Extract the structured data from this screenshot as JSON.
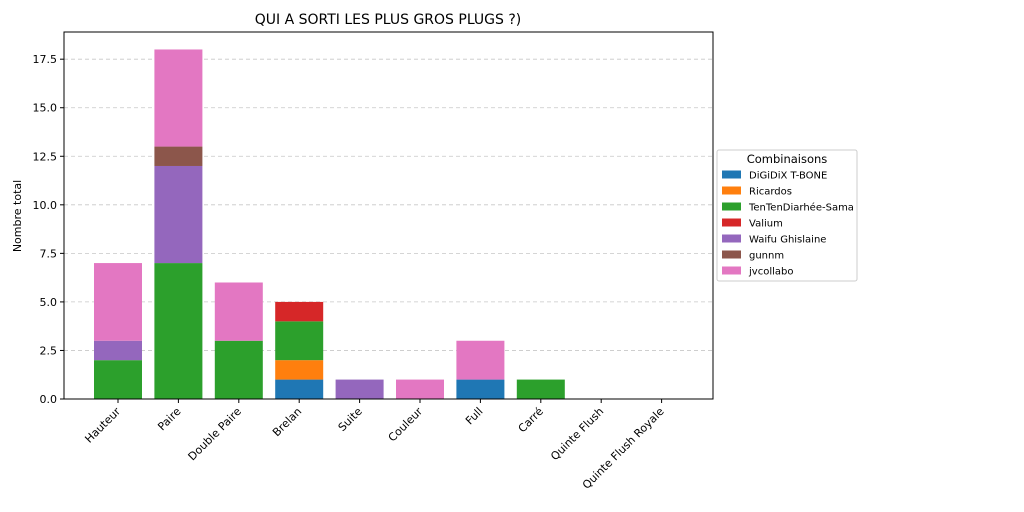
{
  "chart_data": {
    "type": "bar",
    "stacked": true,
    "title": "QUI A SORTI LES PLUS GROS PLUGS ?)",
    "xlabel": "",
    "ylabel": "Nombre total",
    "ylim": [
      0,
      18.9
    ],
    "yticks": [
      "0.0",
      "2.5",
      "5.0",
      "7.5",
      "10.0",
      "12.5",
      "15.0",
      "17.5"
    ],
    "grid": "y-dashed",
    "legend_title": "Combinaisons",
    "legend_position": "outside-right",
    "categories": [
      "Hauteur",
      "Paire",
      "Double Paire",
      "Brelan",
      "Suite",
      "Couleur",
      "Full",
      "Carré",
      "Quinte Flush",
      "Quinte Flush Royale"
    ],
    "series": [
      {
        "name": "DiGiDiX T-BONE",
        "color": "#1f77b4",
        "values": [
          0,
          0,
          0,
          1,
          0,
          0,
          1,
          0,
          0,
          0
        ]
      },
      {
        "name": "Ricardos",
        "color": "#ff7f0e",
        "values": [
          0,
          0,
          0,
          1,
          0,
          0,
          0,
          0,
          0,
          0
        ]
      },
      {
        "name": "TenTenDiarhée-Sama",
        "color": "#2ca02c",
        "values": [
          2,
          7,
          3,
          2,
          0,
          0,
          0,
          1,
          0,
          0
        ]
      },
      {
        "name": "Valium",
        "color": "#d62728",
        "values": [
          0,
          0,
          0,
          1,
          0,
          0,
          0,
          0,
          0,
          0
        ]
      },
      {
        "name": "Waifu Ghislaine",
        "color": "#9467bd",
        "values": [
          1,
          5,
          0,
          0,
          1,
          0,
          0,
          0,
          0,
          0
        ]
      },
      {
        "name": "gunnm",
        "color": "#8c564b",
        "values": [
          0,
          1,
          0,
          0,
          0,
          0,
          0,
          0,
          0,
          0
        ]
      },
      {
        "name": "jvcollabo",
        "color": "#e377c2",
        "values": [
          4,
          5,
          3,
          0,
          0,
          1,
          2,
          0,
          0,
          0
        ]
      }
    ]
  }
}
